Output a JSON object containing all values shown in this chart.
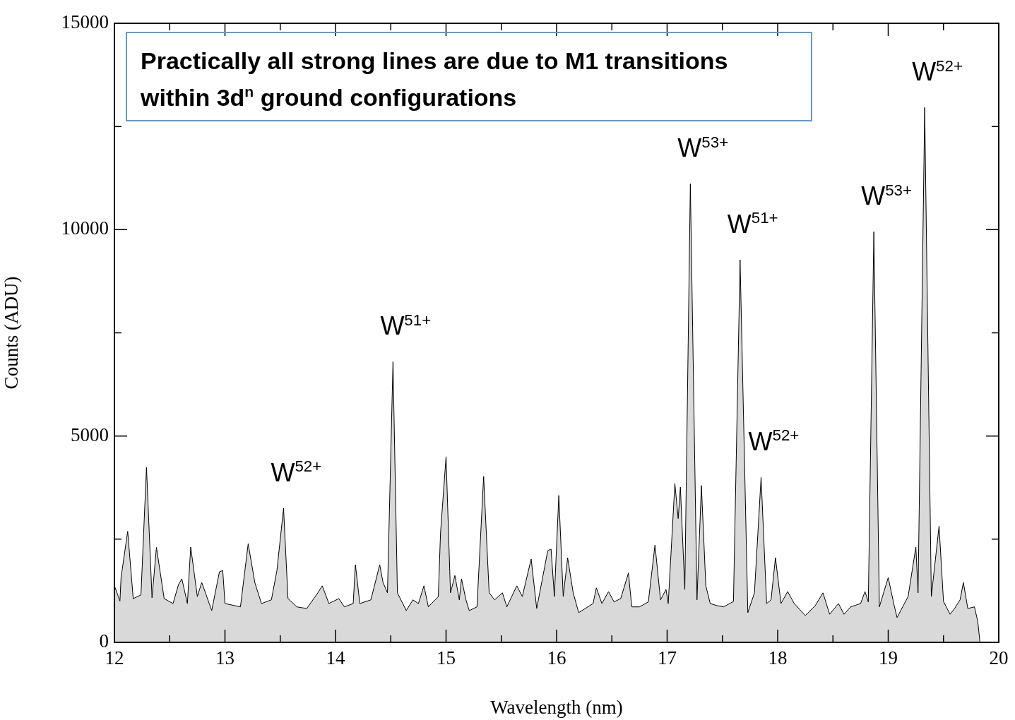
{
  "chart_data": {
    "type": "area",
    "xlabel": "Wavelength (nm)",
    "ylabel": "Counts (ADU)",
    "x": [
      12.0,
      12.05,
      12.06,
      12.12,
      12.17,
      12.24,
      12.29,
      12.34,
      12.38,
      12.45,
      12.53,
      12.58,
      12.61,
      12.66,
      12.69,
      12.75,
      12.79,
      12.83,
      12.88,
      12.95,
      12.98,
      13.0,
      13.14,
      13.21,
      13.27,
      13.33,
      13.42,
      13.47,
      13.53,
      13.57,
      13.65,
      13.74,
      13.84,
      13.88,
      13.94,
      14.03,
      14.08,
      14.16,
      14.18,
      14.22,
      14.32,
      14.4,
      14.43,
      14.47,
      14.52,
      14.56,
      14.64,
      14.7,
      14.75,
      14.8,
      14.84,
      14.93,
      14.95,
      15.0,
      15.04,
      15.08,
      15.12,
      15.14,
      15.18,
      15.21,
      15.28,
      15.34,
      15.39,
      15.44,
      15.51,
      15.55,
      15.64,
      15.69,
      15.77,
      15.82,
      15.92,
      15.95,
      15.98,
      16.02,
      16.06,
      16.1,
      16.15,
      16.2,
      16.33,
      16.36,
      16.41,
      16.47,
      16.52,
      16.58,
      16.65,
      16.68,
      16.75,
      16.83,
      16.89,
      16.94,
      16.99,
      17.01,
      17.07,
      17.1,
      17.12,
      17.16,
      17.21,
      17.27,
      17.31,
      17.35,
      17.39,
      17.45,
      17.51,
      17.6,
      17.66,
      17.73,
      17.79,
      17.85,
      17.9,
      17.94,
      17.98,
      18.03,
      18.09,
      18.15,
      18.25,
      18.34,
      18.41,
      18.47,
      18.55,
      18.6,
      18.66,
      18.75,
      18.79,
      18.82,
      18.87,
      18.92,
      19.0,
      19.05,
      19.08,
      19.18,
      19.25,
      19.27,
      19.33,
      19.39,
      19.46,
      19.5,
      19.56,
      19.6,
      19.65,
      19.68,
      19.72,
      19.78,
      19.81,
      19.83
    ],
    "series": [
      {
        "color": "#000000",
        "values": [
          1370,
          1000,
          1570,
          2690,
          1060,
          1150,
          4240,
          1080,
          2300,
          1060,
          940,
          1400,
          1540,
          940,
          2310,
          1110,
          1450,
          1150,
          770,
          1710,
          1740,
          940,
          860,
          2390,
          1450,
          940,
          1030,
          1740,
          3250,
          1060,
          860,
          820,
          1200,
          1370,
          940,
          1060,
          860,
          940,
          1880,
          940,
          1030,
          1880,
          1450,
          1200,
          6800,
          1200,
          770,
          1030,
          940,
          1370,
          860,
          1110,
          2650,
          4500,
          1200,
          1620,
          1030,
          1540,
          1030,
          770,
          860,
          4020,
          1200,
          1030,
          1200,
          860,
          1370,
          1110,
          2020,
          820,
          2220,
          2260,
          1110,
          3560,
          1110,
          2050,
          1200,
          720,
          940,
          1320,
          940,
          1230,
          980,
          1060,
          1680,
          860,
          860,
          980,
          2360,
          1030,
          1280,
          940,
          3850,
          3000,
          3760,
          1280,
          11110,
          1030,
          3800,
          1370,
          940,
          890,
          860,
          990,
          9270,
          720,
          1200,
          4000,
          940,
          1030,
          2050,
          940,
          1230,
          940,
          650,
          890,
          1200,
          680,
          940,
          680,
          860,
          940,
          1230,
          980,
          9950,
          860,
          1570,
          940,
          600,
          1110,
          2310,
          1200,
          12960,
          1110,
          2820,
          990,
          680,
          820,
          1030,
          1450,
          820,
          860,
          510,
          0
        ]
      }
    ],
    "xlim": [
      12,
      20
    ],
    "ylim": [
      0,
      15000
    ],
    "xticks": [
      12,
      {
        "value": 12.5,
        "label": null
      },
      13,
      {
        "value": 13.5,
        "label": null
      },
      14,
      {
        "value": 14.5,
        "label": null
      },
      15,
      {
        "value": 15.5,
        "label": null
      },
      16,
      {
        "value": 16.5,
        "label": null
      },
      17,
      {
        "value": 17.5,
        "label": null
      },
      18,
      {
        "value": 18.5,
        "label": null
      },
      19,
      {
        "value": 19.5,
        "label": null
      },
      20
    ],
    "yticks": [
      0,
      {
        "value": 2500,
        "label": null
      },
      5000,
      {
        "value": 7500,
        "label": null
      },
      10000,
      {
        "value": 12500,
        "label": null
      },
      15000
    ],
    "grid": false,
    "legend": false,
    "marker": "none",
    "line_style": "solid",
    "annotations": [
      "Practically all strong lines are due to M1 transitions within 3d$^{n}$ ground configurations",
      {
        "text": "W$^{52+}$",
        "x": 13.53,
        "y": 3250
      },
      {
        "text": "W$^{51+}$",
        "x": 14.52,
        "y": 6800
      },
      {
        "text": "W$^{53+}$",
        "x": 17.21,
        "y": 11110
      },
      {
        "text": "W$^{51+}$",
        "x": 17.66,
        "y": 9270
      },
      {
        "text": "W$^{52+}$",
        "x": 17.85,
        "y": 4000
      },
      {
        "text": "W$^{53+}$",
        "x": 18.87,
        "y": 9950
      },
      {
        "text": "W$^{52+}$",
        "x": 19.33,
        "y": 12960
      }
    ]
  }
}
